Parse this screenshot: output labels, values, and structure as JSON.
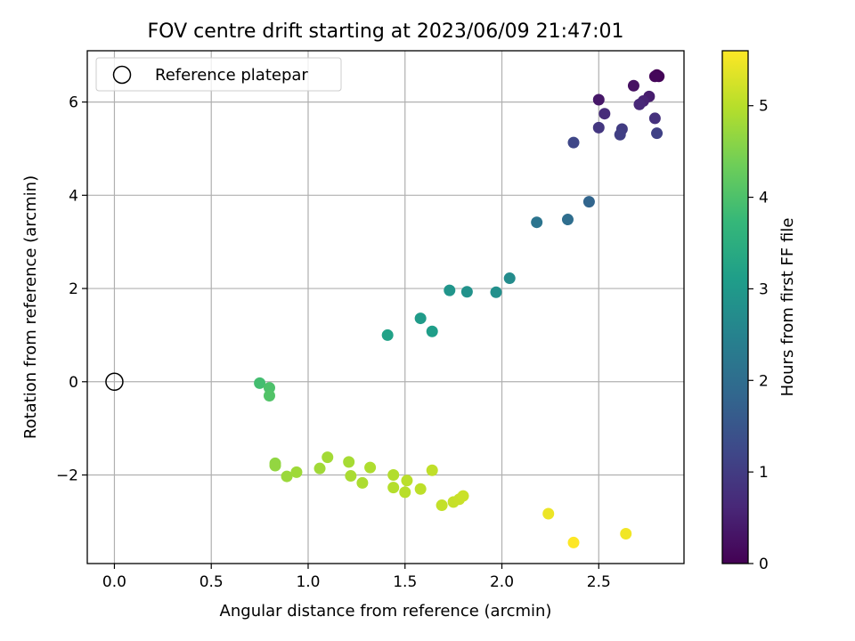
{
  "chart_data": {
    "type": "scatter",
    "title": "FOV centre drift starting at 2023/06/09 21:47:01",
    "xlabel": "Angular distance from reference (arcmin)",
    "ylabel": "Rotation from reference (arcmin)",
    "xlim": [
      -0.14,
      2.94
    ],
    "ylim": [
      -3.9,
      7.1
    ],
    "xticks": [
      0.0,
      0.5,
      1.0,
      1.5,
      2.0,
      2.5
    ],
    "xtick_labels": [
      "0.0",
      "0.5",
      "1.0",
      "1.5",
      "2.0",
      "2.5"
    ],
    "yticks": [
      -2,
      0,
      2,
      4,
      6
    ],
    "ytick_labels": [
      "−2",
      "0",
      "2",
      "4",
      "6"
    ],
    "grid": true,
    "legend": {
      "placement": "top-left",
      "entries": [
        "Reference platepar"
      ]
    },
    "reference_point": {
      "x": 0,
      "y": 0,
      "label": "Reference platepar"
    },
    "colorbar": {
      "label": "Hours from first FF file",
      "range": [
        0,
        5.6
      ],
      "ticks": [
        0,
        1,
        2,
        3,
        4,
        5
      ],
      "tick_labels": [
        "0",
        "1",
        "2",
        "3",
        "4",
        "5"
      ],
      "colormap": "viridis"
    },
    "points": [
      {
        "x": 2.8,
        "y": 6.58,
        "c": 0.0
      },
      {
        "x": 2.81,
        "y": 6.55,
        "c": 0.05
      },
      {
        "x": 2.79,
        "y": 6.55,
        "c": 0.1
      },
      {
        "x": 2.68,
        "y": 6.35,
        "c": 0.25
      },
      {
        "x": 2.5,
        "y": 6.05,
        "c": 0.35
      },
      {
        "x": 2.76,
        "y": 6.12,
        "c": 0.45
      },
      {
        "x": 2.73,
        "y": 6.02,
        "c": 0.55
      },
      {
        "x": 2.71,
        "y": 5.95,
        "c": 0.62
      },
      {
        "x": 2.53,
        "y": 5.75,
        "c": 0.7
      },
      {
        "x": 2.79,
        "y": 5.65,
        "c": 0.8
      },
      {
        "x": 2.5,
        "y": 5.45,
        "c": 0.9
      },
      {
        "x": 2.62,
        "y": 5.42,
        "c": 1.0
      },
      {
        "x": 2.61,
        "y": 5.3,
        "c": 1.05
      },
      {
        "x": 2.8,
        "y": 5.33,
        "c": 1.1
      },
      {
        "x": 2.37,
        "y": 5.13,
        "c": 1.2
      },
      {
        "x": 2.45,
        "y": 3.86,
        "c": 1.8
      },
      {
        "x": 2.34,
        "y": 3.48,
        "c": 2.0
      },
      {
        "x": 2.18,
        "y": 3.42,
        "c": 2.15
      },
      {
        "x": 2.04,
        "y": 2.22,
        "c": 2.7
      },
      {
        "x": 1.97,
        "y": 1.92,
        "c": 2.8
      },
      {
        "x": 1.82,
        "y": 1.93,
        "c": 2.85
      },
      {
        "x": 1.73,
        "y": 1.96,
        "c": 2.9
      },
      {
        "x": 1.58,
        "y": 1.36,
        "c": 3.05
      },
      {
        "x": 1.64,
        "y": 1.08,
        "c": 3.1
      },
      {
        "x": 1.41,
        "y": 1.0,
        "c": 3.2
      },
      {
        "x": 0.75,
        "y": -0.03,
        "c": 3.9
      },
      {
        "x": 0.8,
        "y": -0.13,
        "c": 4.0
      },
      {
        "x": 0.8,
        "y": -0.3,
        "c": 4.05
      },
      {
        "x": 0.83,
        "y": -1.75,
        "c": 4.65
      },
      {
        "x": 0.83,
        "y": -1.8,
        "c": 4.68
      },
      {
        "x": 0.89,
        "y": -2.03,
        "c": 4.75
      },
      {
        "x": 0.94,
        "y": -1.94,
        "c": 4.78
      },
      {
        "x": 1.06,
        "y": -1.86,
        "c": 4.8
      },
      {
        "x": 1.1,
        "y": -1.62,
        "c": 4.82
      },
      {
        "x": 1.21,
        "y": -1.72,
        "c": 4.85
      },
      {
        "x": 1.22,
        "y": -2.02,
        "c": 4.88
      },
      {
        "x": 1.28,
        "y": -2.17,
        "c": 4.9
      },
      {
        "x": 1.32,
        "y": -1.84,
        "c": 4.92
      },
      {
        "x": 1.44,
        "y": -2.0,
        "c": 4.95
      },
      {
        "x": 1.44,
        "y": -2.27,
        "c": 4.97
      },
      {
        "x": 1.5,
        "y": -2.37,
        "c": 5.0
      },
      {
        "x": 1.51,
        "y": -2.12,
        "c": 5.02
      },
      {
        "x": 1.58,
        "y": -2.3,
        "c": 5.05
      },
      {
        "x": 1.64,
        "y": -1.9,
        "c": 5.07
      },
      {
        "x": 1.69,
        "y": -2.65,
        "c": 5.1
      },
      {
        "x": 1.75,
        "y": -2.58,
        "c": 5.12
      },
      {
        "x": 1.78,
        "y": -2.52,
        "c": 5.14
      },
      {
        "x": 1.8,
        "y": -2.45,
        "c": 5.16
      },
      {
        "x": 2.24,
        "y": -2.83,
        "c": 5.45
      },
      {
        "x": 2.64,
        "y": -3.26,
        "c": 5.5
      },
      {
        "x": 2.37,
        "y": -3.45,
        "c": 5.6
      }
    ]
  }
}
